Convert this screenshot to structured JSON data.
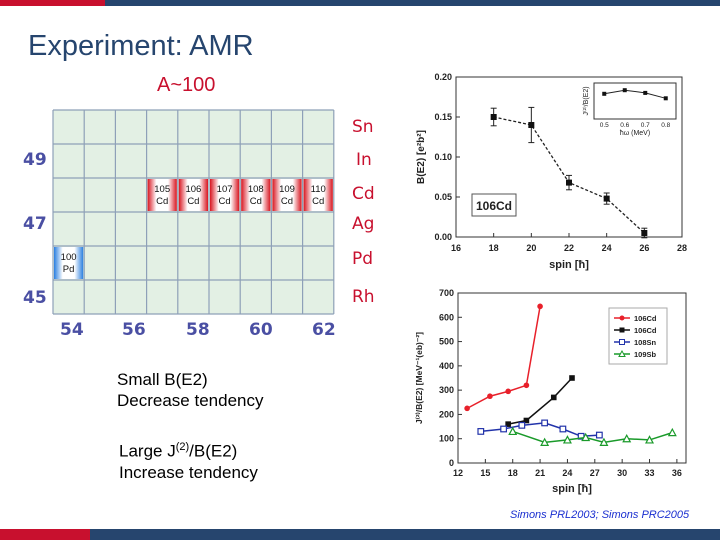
{
  "title": "Experiment: AMR",
  "subtitle": "A~100",
  "grid": {
    "z_labels": [
      {
        "text": "49",
        "row": 2
      },
      {
        "text": "47",
        "row": 4
      },
      {
        "text": "45",
        "row": 6
      }
    ],
    "n_labels": [
      "54",
      "56",
      "58",
      "60",
      "62"
    ],
    "element_labels": [
      {
        "text": "Sn",
        "row": 0
      },
      {
        "text": "In",
        "row": 1
      },
      {
        "text": "Cd",
        "row": 2
      },
      {
        "text": "Ag",
        "row": 3
      },
      {
        "text": "Pd",
        "row": 4
      },
      {
        "text": "Rh",
        "row": 5
      }
    ],
    "cd_cells": [
      {
        "mass": "105",
        "sym": "Cd",
        "col": 3
      },
      {
        "mass": "106",
        "sym": "Cd",
        "col": 4
      },
      {
        "mass": "107",
        "sym": "Cd",
        "col": 5
      },
      {
        "mass": "108",
        "sym": "Cd",
        "col": 6
      },
      {
        "mass": "109",
        "sym": "Cd",
        "col": 7
      },
      {
        "mass": "110",
        "sym": "Cd",
        "col": 8
      }
    ],
    "pd_cell": {
      "mass": "100",
      "sym": "Pd",
      "col": 0
    }
  },
  "notes": {
    "n1_line1": "Small B(E2)",
    "n1_line2": "Decrease tendency",
    "n2_pre": "Large J",
    "n2_sup": "(2)",
    "n2_post": "/B(E2)",
    "n2_line2": "Increase tendency"
  },
  "citation": "Simons PRL2003; Simons PRC2005",
  "chart_data": [
    {
      "type": "line",
      "xlabel": "spin [ħ]",
      "ylabel": "B(E2) [e²b²]",
      "xlim": [
        16,
        28
      ],
      "ylim": [
        0.0,
        0.2
      ],
      "xticks": [
        "16",
        "18",
        "20",
        "22",
        "24",
        "26",
        "28"
      ],
      "yticks": [
        "0.00",
        "0.05",
        "0.10",
        "0.15",
        "0.20"
      ],
      "legend_label": "106Cd",
      "series": [
        {
          "x": [
            18,
            20,
            22,
            24,
            26
          ],
          "y": [
            0.15,
            0.14,
            0.068,
            0.048,
            0.005
          ],
          "err": [
            0.011,
            0.022,
            0.009,
            0.007,
            0.006
          ]
        }
      ],
      "inset": {
        "xlabel": "ħω (MeV)",
        "ylabel": "J⁽²⁾/B(E2)",
        "xticks": [
          "0.5",
          "0.6",
          "0.7",
          "0.8"
        ],
        "series": [
          {
            "x": [
              0.5,
              0.6,
              0.7,
              0.8
            ],
            "y": [
              0.88,
              0.92,
              0.89,
              0.83
            ]
          }
        ]
      }
    },
    {
      "type": "line",
      "xlabel": "spin [ħ]",
      "ylabel": "J⁽²⁾/B(E2) [MeV⁻¹(eb)⁻²]",
      "xlim": [
        12,
        37
      ],
      "ylim": [
        0,
        700
      ],
      "xticks": [
        "12",
        "15",
        "18",
        "21",
        "24",
        "27",
        "30",
        "33",
        "36"
      ],
      "yticks": [
        "0",
        "100",
        "200",
        "300",
        "400",
        "500",
        "600",
        "700"
      ],
      "series": [
        {
          "name": "106Cd",
          "color": "#e8202a",
          "marker": "circle",
          "x": [
            13,
            15.5,
            17.5,
            19.5,
            21
          ],
          "y": [
            225,
            275,
            295,
            320,
            645
          ]
        },
        {
          "name": "106Cd",
          "color": "#111111",
          "marker": "square",
          "x": [
            17.5,
            19.5,
            22.5,
            24.5
          ],
          "y": [
            160,
            175,
            270,
            350
          ]
        },
        {
          "name": "108Sn",
          "color": "#2233aa",
          "marker": "open-square",
          "x": [
            14.5,
            17,
            19,
            21.5,
            23.5,
            25.5,
            27.5
          ],
          "y": [
            130,
            140,
            155,
            165,
            140,
            110,
            115
          ]
        },
        {
          "name": "109Sb",
          "color": "#1a9a2a",
          "marker": "open-triangle",
          "x": [
            18,
            21.5,
            24,
            26,
            28,
            30.5,
            33,
            35.5
          ],
          "y": [
            130,
            85,
            95,
            105,
            85,
            100,
            95,
            125
          ]
        }
      ]
    }
  ]
}
